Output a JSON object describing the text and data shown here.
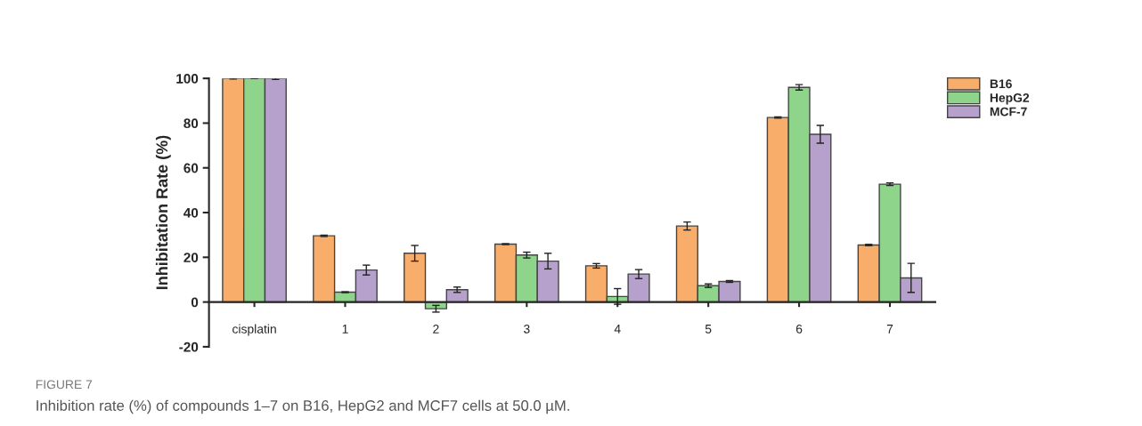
{
  "chart_data": {
    "type": "bar",
    "categories": [
      "cisplatin",
      "1",
      "2",
      "3",
      "4",
      "5",
      "6",
      "7"
    ],
    "ylabel": "Inhibitation Rate (%)",
    "ylim": [
      -20,
      100
    ],
    "yticks": [
      -20,
      0,
      20,
      40,
      60,
      80,
      100
    ],
    "series": [
      {
        "name": "B16",
        "color": "#f9ad6a",
        "values": [
          100,
          29.6,
          21.8,
          25.9,
          16.2,
          34,
          82.5,
          25.5
        ],
        "errors": [
          0.3,
          0.3,
          3.5,
          0.2,
          1,
          1.8,
          0.3,
          0.3
        ]
      },
      {
        "name": "HepG2",
        "color": "#8ed48b",
        "values": [
          100,
          4.4,
          -3,
          21,
          2.5,
          7.3,
          96,
          52.7
        ],
        "errors": [
          0.1,
          0.2,
          1.5,
          1.3,
          3.5,
          0.8,
          1.2,
          0.6
        ]
      },
      {
        "name": "MCF-7",
        "color": "#b6a0cc",
        "values": [
          100,
          14.3,
          5.5,
          18.3,
          12.5,
          9.2,
          75,
          10.8
        ],
        "errors": [
          0.5,
          2.2,
          1.2,
          3.5,
          2,
          0.4,
          4,
          6.5
        ]
      }
    ],
    "legend": "top right",
    "grid": false,
    "annotations": [
      "FIGURE 7",
      "Inhibition rate (%) of compounds 1–7 on B16, HepG2 and MCF7 cells at 50.0 µM."
    ]
  }
}
